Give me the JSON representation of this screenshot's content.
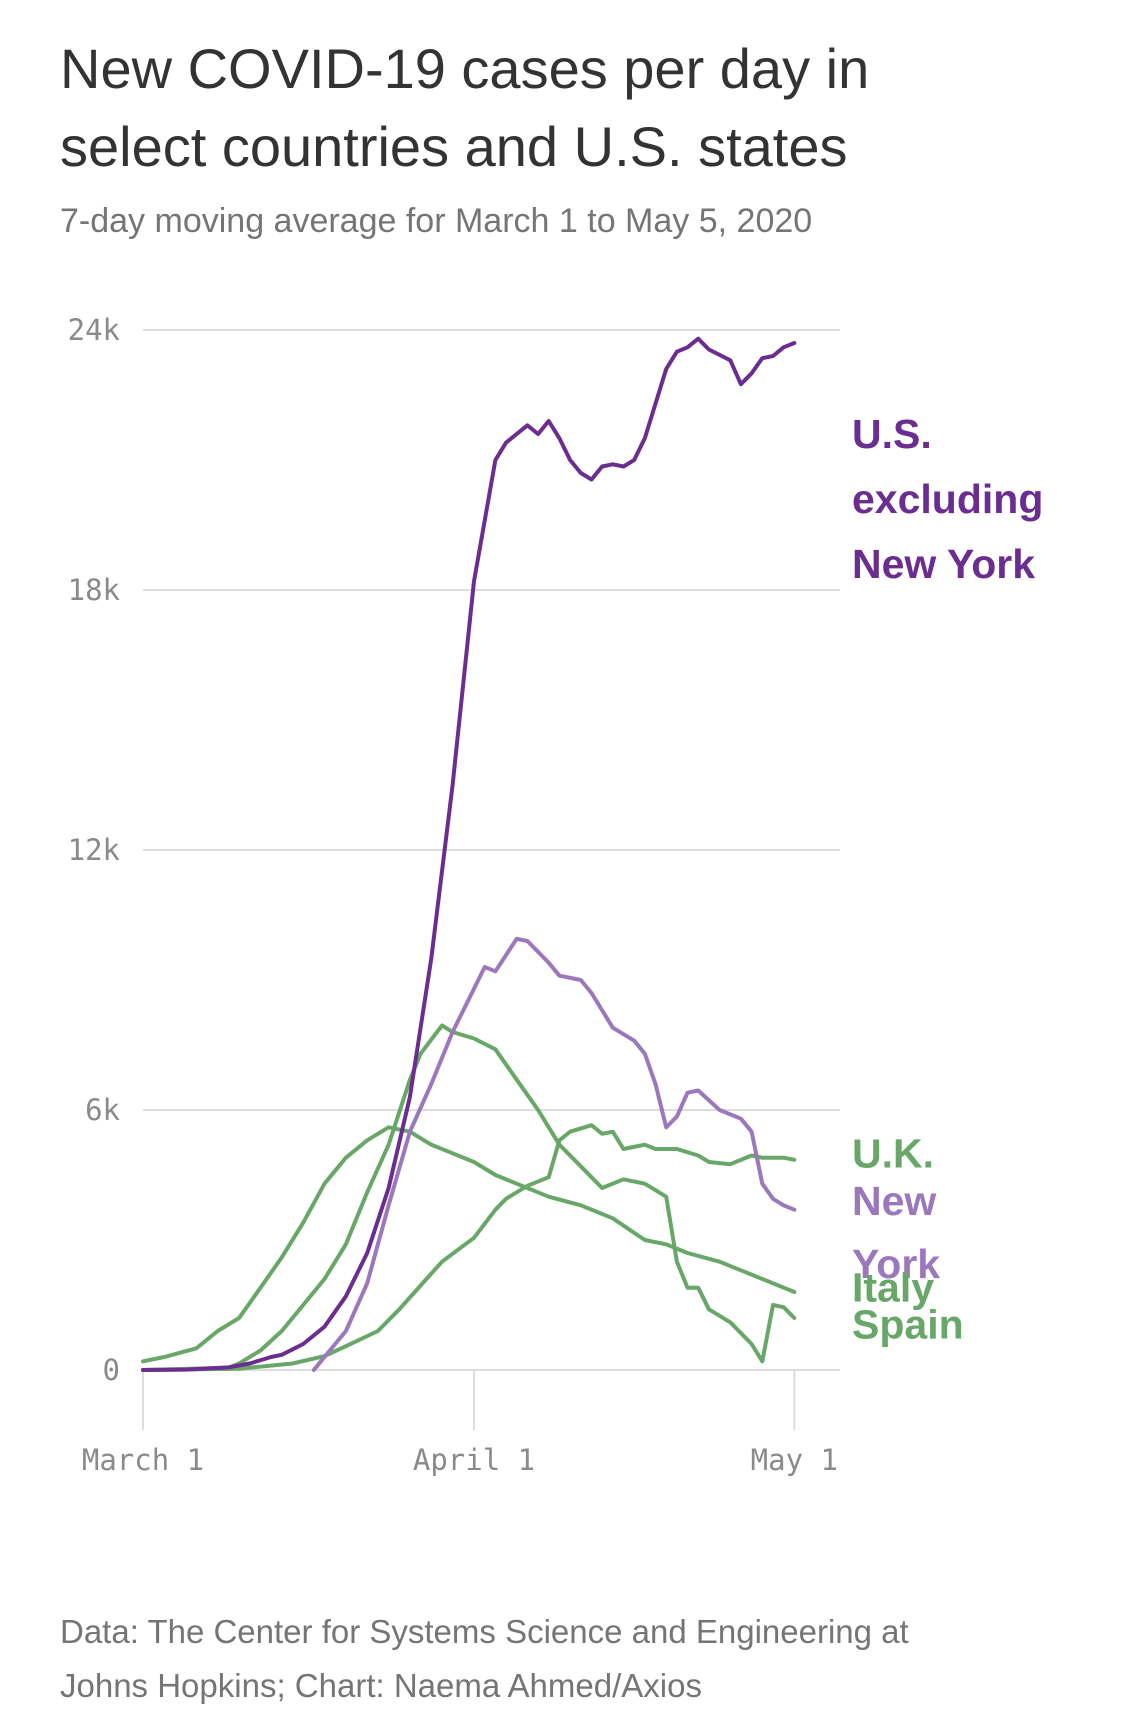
{
  "header": {
    "title_line1": "New COVID-19 cases per day in",
    "title_line2": "select countries and U.S. states",
    "subtitle": "7-day moving average for March 1 to May 5, 2020"
  },
  "footer": {
    "line1": "Data: The Center for Systems Science and Engineering at",
    "line2": "Johns Hopkins; Chart: Naema Ahmed/Axios"
  },
  "colors": {
    "us_purple": "#6b2d8f",
    "ny_purple": "#9b78bb",
    "green": "#68a768",
    "grid": "#dddddd",
    "axis_text": "#8a8a8a"
  },
  "chart_data": {
    "type": "line",
    "title": "New COVID-19 cases per day in select countries and U.S. states",
    "subtitle": "7-day moving average for March 1 to May 5, 2020",
    "x_start": "2020-03-01",
    "x_end": "2020-05-05",
    "x_ticks": [
      {
        "date": "2020-03-01",
        "label": "March 1"
      },
      {
        "date": "2020-04-01",
        "label": "April 1"
      },
      {
        "date": "2020-05-01",
        "label": "May 1"
      }
    ],
    "y_ticks": [
      {
        "value": 0,
        "label": "0"
      },
      {
        "value": 6000,
        "label": "6k"
      },
      {
        "value": 12000,
        "label": "12k"
      },
      {
        "value": 18000,
        "label": "18k"
      },
      {
        "value": 24000,
        "label": "24k"
      }
    ],
    "ylim": [
      0,
      24000
    ],
    "grid": "horizontal",
    "series": [
      {
        "name": "U.S. excluding New York",
        "label_lines": [
          "U.S.",
          "excluding",
          "New York"
        ],
        "color_key": "us_purple",
        "label_line_values": [
          21600,
          20100,
          18600
        ],
        "points": [
          [
            "2020-03-01",
            0
          ],
          [
            "2020-03-05",
            10
          ],
          [
            "2020-03-09",
            60
          ],
          [
            "2020-03-11",
            150
          ],
          [
            "2020-03-13",
            300
          ],
          [
            "2020-03-14",
            350
          ],
          [
            "2020-03-16",
            600
          ],
          [
            "2020-03-18",
            1000
          ],
          [
            "2020-03-20",
            1700
          ],
          [
            "2020-03-22",
            2700
          ],
          [
            "2020-03-24",
            4200
          ],
          [
            "2020-03-26",
            6300
          ],
          [
            "2020-03-28",
            9500
          ],
          [
            "2020-03-30",
            13500
          ],
          [
            "2020-04-01",
            18200
          ],
          [
            "2020-04-03",
            21000
          ],
          [
            "2020-04-04",
            21400
          ],
          [
            "2020-04-06",
            21800
          ],
          [
            "2020-04-07",
            21600
          ],
          [
            "2020-04-08",
            21900
          ],
          [
            "2020-04-09",
            21500
          ],
          [
            "2020-04-10",
            21000
          ],
          [
            "2020-04-11",
            20700
          ],
          [
            "2020-04-12",
            20550
          ],
          [
            "2020-04-13",
            20850
          ],
          [
            "2020-04-14",
            20900
          ],
          [
            "2020-04-15",
            20850
          ],
          [
            "2020-04-16",
            21000
          ],
          [
            "2020-04-17",
            21500
          ],
          [
            "2020-04-19",
            23100
          ],
          [
            "2020-04-20",
            23500
          ],
          [
            "2020-04-21",
            23600
          ],
          [
            "2020-04-22",
            23800
          ],
          [
            "2020-04-23",
            23550
          ],
          [
            "2020-04-25",
            23300
          ],
          [
            "2020-04-26",
            22750
          ],
          [
            "2020-04-27",
            23000
          ],
          [
            "2020-04-28",
            23350
          ],
          [
            "2020-04-29",
            23400
          ],
          [
            "2020-04-30",
            23600
          ],
          [
            "2020-05-01",
            23700
          ]
        ]
      },
      {
        "name": "New York",
        "label_lines": [
          "New",
          "York"
        ],
        "color_key": "ny_purple",
        "label_line_values": [
          3900,
          2450
        ],
        "points": [
          [
            "2020-03-17",
            0
          ],
          [
            "2020-03-18",
            300
          ],
          [
            "2020-03-20",
            900
          ],
          [
            "2020-03-22",
            2000
          ],
          [
            "2020-03-24",
            3800
          ],
          [
            "2020-03-26",
            5500
          ],
          [
            "2020-03-28",
            6600
          ],
          [
            "2020-03-30",
            7800
          ],
          [
            "2020-04-01",
            8800
          ],
          [
            "2020-04-02",
            9300
          ],
          [
            "2020-04-03",
            9200
          ],
          [
            "2020-04-05",
            9950
          ],
          [
            "2020-04-06",
            9900
          ],
          [
            "2020-04-08",
            9400
          ],
          [
            "2020-04-09",
            9100
          ],
          [
            "2020-04-11",
            9000
          ],
          [
            "2020-04-12",
            8700
          ],
          [
            "2020-04-14",
            7900
          ],
          [
            "2020-04-16",
            7600
          ],
          [
            "2020-04-17",
            7300
          ],
          [
            "2020-04-18",
            6600
          ],
          [
            "2020-04-19",
            5600
          ],
          [
            "2020-04-20",
            5850
          ],
          [
            "2020-04-21",
            6400
          ],
          [
            "2020-04-22",
            6450
          ],
          [
            "2020-04-24",
            6000
          ],
          [
            "2020-04-26",
            5800
          ],
          [
            "2020-04-27",
            5500
          ],
          [
            "2020-04-28",
            4300
          ],
          [
            "2020-04-29",
            3950
          ],
          [
            "2020-04-30",
            3800
          ],
          [
            "2020-05-01",
            3700
          ]
        ]
      },
      {
        "name": "U.K.",
        "label_lines": [
          "U.K."
        ],
        "color_key": "green",
        "label_line_values": [
          5000
        ],
        "points": [
          [
            "2020-03-01",
            0
          ],
          [
            "2020-03-10",
            30
          ],
          [
            "2020-03-15",
            150
          ],
          [
            "2020-03-18",
            320
          ],
          [
            "2020-03-20",
            550
          ],
          [
            "2020-03-23",
            900
          ],
          [
            "2020-03-25",
            1400
          ],
          [
            "2020-03-27",
            1950
          ],
          [
            "2020-03-29",
            2500
          ],
          [
            "2020-04-01",
            3050
          ],
          [
            "2020-04-03",
            3700
          ],
          [
            "2020-04-04",
            3950
          ],
          [
            "2020-04-06",
            4250
          ],
          [
            "2020-04-08",
            4450
          ],
          [
            "2020-04-09",
            5300
          ],
          [
            "2020-04-10",
            5500
          ],
          [
            "2020-04-12",
            5650
          ],
          [
            "2020-04-13",
            5450
          ],
          [
            "2020-04-14",
            5500
          ],
          [
            "2020-04-15",
            5100
          ],
          [
            "2020-04-17",
            5200
          ],
          [
            "2020-04-18",
            5100
          ],
          [
            "2020-04-20",
            5100
          ],
          [
            "2020-04-22",
            4950
          ],
          [
            "2020-04-23",
            4800
          ],
          [
            "2020-04-25",
            4750
          ],
          [
            "2020-04-27",
            4950
          ],
          [
            "2020-04-28",
            4900
          ],
          [
            "2020-04-30",
            4900
          ],
          [
            "2020-05-01",
            4850
          ]
        ]
      },
      {
        "name": "Italy",
        "label_lines": [
          "Italy"
        ],
        "color_key": "green",
        "label_line_values": [
          1900
        ],
        "points": [
          [
            "2020-03-01",
            200
          ],
          [
            "2020-03-03",
            300
          ],
          [
            "2020-03-06",
            500
          ],
          [
            "2020-03-08",
            900
          ],
          [
            "2020-03-10",
            1200
          ],
          [
            "2020-03-12",
            1900
          ],
          [
            "2020-03-14",
            2600
          ],
          [
            "2020-03-16",
            3400
          ],
          [
            "2020-03-18",
            4300
          ],
          [
            "2020-03-20",
            4900
          ],
          [
            "2020-03-22",
            5300
          ],
          [
            "2020-03-24",
            5600
          ],
          [
            "2020-03-26",
            5500
          ],
          [
            "2020-03-28",
            5200
          ],
          [
            "2020-03-30",
            5000
          ],
          [
            "2020-04-01",
            4800
          ],
          [
            "2020-04-03",
            4500
          ],
          [
            "2020-04-05",
            4300
          ],
          [
            "2020-04-08",
            4000
          ],
          [
            "2020-04-11",
            3800
          ],
          [
            "2020-04-14",
            3500
          ],
          [
            "2020-04-17",
            3000
          ],
          [
            "2020-04-19",
            2900
          ],
          [
            "2020-04-21",
            2700
          ],
          [
            "2020-04-24",
            2500
          ],
          [
            "2020-04-26",
            2300
          ],
          [
            "2020-04-29",
            2000
          ],
          [
            "2020-05-01",
            1800
          ]
        ]
      },
      {
        "name": "Spain",
        "label_lines": [
          "Spain"
        ],
        "color_key": "green",
        "label_line_values": [
          1050
        ],
        "points": [
          [
            "2020-03-01",
            0
          ],
          [
            "2020-03-09",
            50
          ],
          [
            "2020-03-10",
            150
          ],
          [
            "2020-03-12",
            450
          ],
          [
            "2020-03-14",
            900
          ],
          [
            "2020-03-16",
            1500
          ],
          [
            "2020-03-18",
            2100
          ],
          [
            "2020-03-20",
            2900
          ],
          [
            "2020-03-22",
            4100
          ],
          [
            "2020-03-24",
            5200
          ],
          [
            "2020-03-26",
            6700
          ],
          [
            "2020-03-27",
            7300
          ],
          [
            "2020-03-29",
            7950
          ],
          [
            "2020-03-30",
            7800
          ],
          [
            "2020-04-01",
            7650
          ],
          [
            "2020-04-03",
            7400
          ],
          [
            "2020-04-05",
            6700
          ],
          [
            "2020-04-07",
            6000
          ],
          [
            "2020-04-09",
            5200
          ],
          [
            "2020-04-11",
            4700
          ],
          [
            "2020-04-13",
            4200
          ],
          [
            "2020-04-15",
            4400
          ],
          [
            "2020-04-17",
            4300
          ],
          [
            "2020-04-19",
            4000
          ],
          [
            "2020-04-20",
            2500
          ],
          [
            "2020-04-21",
            1900
          ],
          [
            "2020-04-22",
            1900
          ],
          [
            "2020-04-23",
            1400
          ],
          [
            "2020-04-25",
            1100
          ],
          [
            "2020-04-27",
            600
          ],
          [
            "2020-04-28",
            200
          ],
          [
            "2020-04-29",
            1500
          ],
          [
            "2020-04-30",
            1450
          ],
          [
            "2020-05-01",
            1200
          ]
        ]
      }
    ]
  }
}
